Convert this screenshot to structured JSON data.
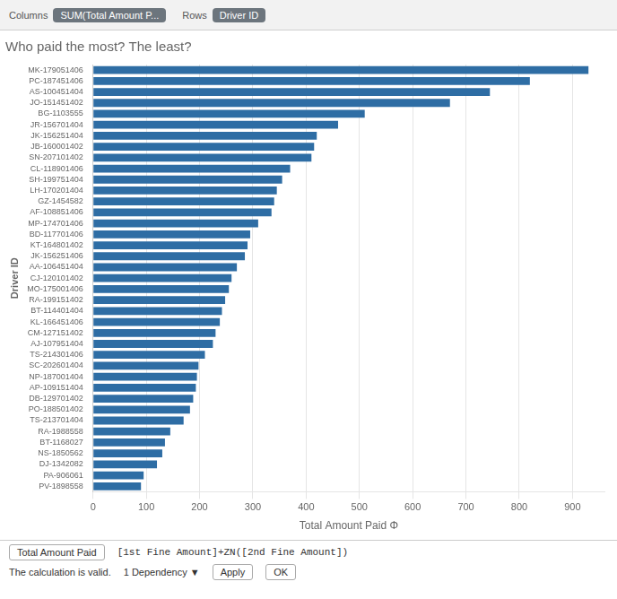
{
  "chart_data": {
    "type": "bar",
    "orientation": "horizontal",
    "title": "Who paid the most? The least?",
    "xlabel": "Total Amount Paid Φ",
    "ylabel": "Driver ID",
    "color": "#2e6da4",
    "xlim": [
      0,
      960
    ],
    "xticks": [
      0,
      100,
      200,
      300,
      400,
      500,
      600,
      700,
      800,
      900
    ],
    "grid": true,
    "categories": [
      "MK-179051406",
      "PC-187451406",
      "AS-100451404",
      "JO-151451402",
      "BG-1103555",
      "JR-156701404",
      "JK-156251404",
      "JB-160001402",
      "SN-207101402",
      "CL-118901406",
      "SH-199751404",
      "LH-170201404",
      "GZ-1454582",
      "AF-108851406",
      "MP-174701406",
      "BD-117701406",
      "KT-164801402",
      "JK-156251406",
      "AA-106451404",
      "CJ-120101402",
      "MO-175001406",
      "RA-199151402",
      "BT-114401404",
      "KL-166451406",
      "CM-127151402",
      "AJ-107951404",
      "TS-214301406",
      "SC-202601404",
      "NP-187001404",
      "AP-109151404",
      "DB-129701402",
      "PO-188501402",
      "TS-213701404",
      "RA-1988558",
      "BT-1168027",
      "NS-1850562",
      "DJ-1342082",
      "PA-906061",
      "PV-1898558"
    ],
    "values": [
      930,
      820,
      745,
      670,
      510,
      460,
      420,
      415,
      410,
      370,
      355,
      345,
      340,
      335,
      310,
      295,
      290,
      285,
      270,
      260,
      255,
      248,
      242,
      238,
      230,
      225,
      210,
      198,
      195,
      193,
      188,
      182,
      170,
      145,
      135,
      130,
      120,
      95,
      90
    ],
    "annotations": [
      "Columns",
      "SUM(Total Amount P...",
      "Rows",
      "Driver ID",
      "Total Amount Paid",
      "[1st Fine Amount]+ZN([2nd Fine Amount])",
      "The calculation is valid.",
      "1 Dependency ▼",
      "Apply",
      "OK"
    ]
  }
}
